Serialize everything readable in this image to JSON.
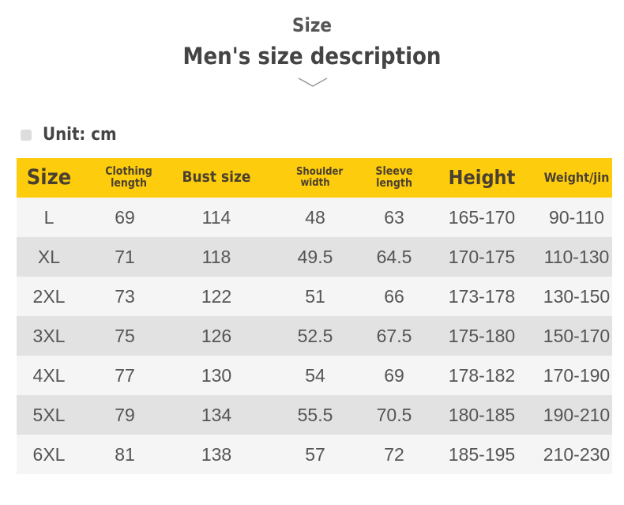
{
  "heading": {
    "title": "Size",
    "subtitle": "Men's size description",
    "unit": "Unit: cm"
  },
  "columns": [
    "Size",
    "Clothing length",
    "Bust size",
    "Shoulder width",
    "Sleeve length",
    "Height",
    "Weight/jin"
  ],
  "rows": [
    [
      "L",
      "69",
      "114",
      "48",
      "63",
      "165-170",
      "90-110"
    ],
    [
      "XL",
      "71",
      "118",
      "49.5",
      "64.5",
      "170-175",
      "110-130"
    ],
    [
      "2XL",
      "73",
      "122",
      "51",
      "66",
      "173-178",
      "130-150"
    ],
    [
      "3XL",
      "75",
      "126",
      "52.5",
      "67.5",
      "175-180",
      "150-170"
    ],
    [
      "4XL",
      "77",
      "130",
      "54",
      "69",
      "178-182",
      "170-190"
    ],
    [
      "5XL",
      "79",
      "134",
      "55.5",
      "70.5",
      "180-185",
      "190-210"
    ],
    [
      "6XL",
      "81",
      "138",
      "57",
      "72",
      "185-195",
      "210-230"
    ]
  ],
  "colors": {
    "header": "#fdcc0d",
    "row_light": "#f5f5f5",
    "row_dark": "#e2e2e2"
  }
}
